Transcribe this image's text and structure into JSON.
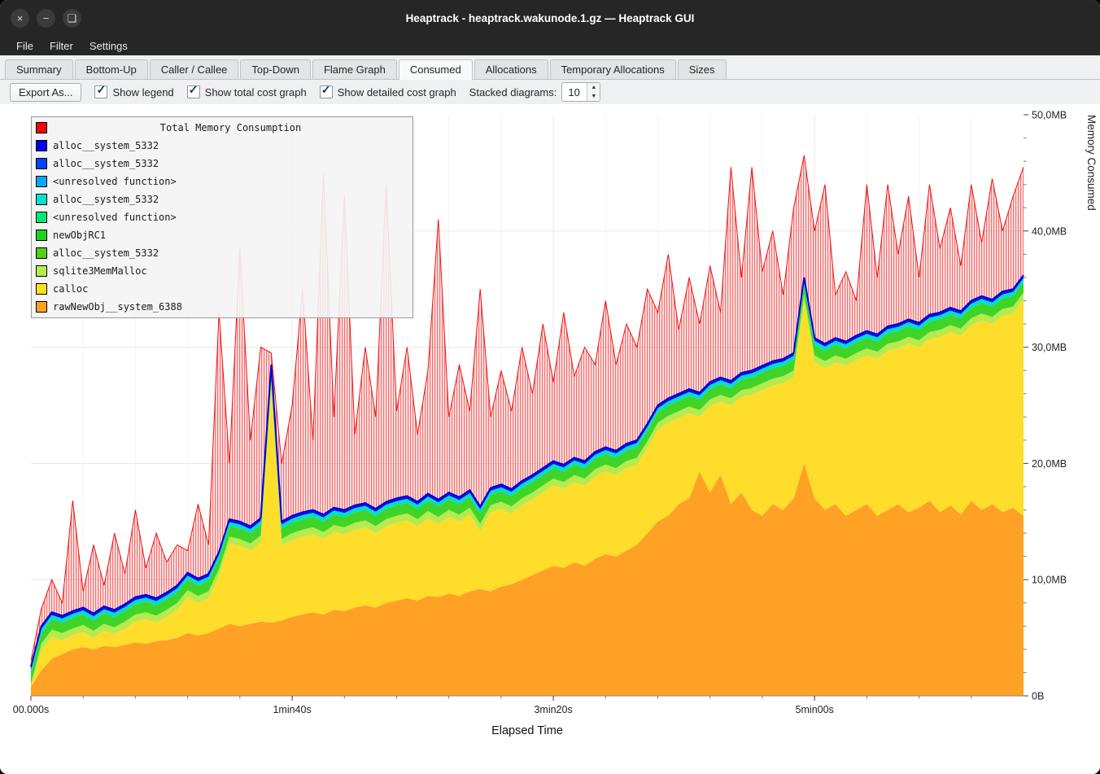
{
  "window": {
    "title": "Heaptrack - heaptrack.wakunode.1.gz — Heaptrack GUI"
  },
  "titlebar_icons": {
    "close": "×",
    "minimize": "−",
    "maximize": "❏"
  },
  "menu": {
    "items": [
      "File",
      "Filter",
      "Settings"
    ]
  },
  "tabs": {
    "active": "Consumed",
    "items": [
      {
        "label": "Summary"
      },
      {
        "label": "Bottom-Up"
      },
      {
        "label": "Caller / Callee"
      },
      {
        "label": "Top-Down"
      },
      {
        "label": "Flame Graph"
      },
      {
        "label": "Consumed"
      },
      {
        "label": "Allocations"
      },
      {
        "label": "Temporary Allocations"
      },
      {
        "label": "Sizes"
      }
    ]
  },
  "toolbar": {
    "export_label": "Export As...",
    "checkboxes": [
      {
        "label": "Show legend",
        "checked": true
      },
      {
        "label": "Show total cost graph",
        "checked": true
      },
      {
        "label": "Show detailed cost graph",
        "checked": true
      }
    ],
    "stacked_label": "Stacked diagrams:",
    "stacked_value": "10"
  },
  "legend": {
    "title": "Total Memory Consumption",
    "title_color": "#ff0000",
    "entries": [
      {
        "label": "alloc__system_5332",
        "color": "#0000ee"
      },
      {
        "label": "alloc__system_5332",
        "color": "#0044ff"
      },
      {
        "label": "<unresolved function>",
        "color": "#00aaff"
      },
      {
        "label": "alloc__system_5332",
        "color": "#00e5cf"
      },
      {
        "label": "<unresolved function>",
        "color": "#00e87a"
      },
      {
        "label": "newObjRC1",
        "color": "#1ed31e"
      },
      {
        "label": "alloc__system_5332",
        "color": "#52cf17"
      },
      {
        "label": "sqlite3MemMalloc",
        "color": "#b6ec52"
      },
      {
        "label": "calloc",
        "color": "#ffe01f"
      },
      {
        "label": "rawNewObj__system_6388",
        "color": "#ffa125"
      }
    ]
  },
  "chart_data": {
    "type": "area",
    "title": "Total Memory Consumption",
    "xlabel": "Elapsed Time",
    "ylabel": "Memory Consumed",
    "x_step_s": 4,
    "x_count": 96,
    "x_range_s": [
      0,
      380
    ],
    "y_range_mb": [
      0,
      50
    ],
    "x_ticks": [
      {
        "t": 0,
        "label": "00.000s"
      },
      {
        "t": 100,
        "label": "1min40s"
      },
      {
        "t": 200,
        "label": "3min20s"
      },
      {
        "t": 300,
        "label": "5min00s"
      }
    ],
    "y_ticks": [
      {
        "mb": 0,
        "label": "0B"
      },
      {
        "mb": 10,
        "label": "10,0MB"
      },
      {
        "mb": 20,
        "label": "20,0MB"
      },
      {
        "mb": 30,
        "label": "30,0MB"
      },
      {
        "mb": 40,
        "label": "40,0MB"
      },
      {
        "mb": 50,
        "label": "50,0MB"
      }
    ],
    "minor_x_tick_s": 20,
    "minor_y_tick_mb": 2,
    "total_color": "#ee1111",
    "stack_line_color": "#0000dd",
    "band_colors": {
      "rawNewObj__system_6388": "#ffa125",
      "calloc": "#ffdd2b"
    },
    "total_mb": [
      3.0,
      7.5,
      10.0,
      8.0,
      16.8,
      9.0,
      13.0,
      9.5,
      14.0,
      10.5,
      16.0,
      11.0,
      14.0,
      11.5,
      13.0,
      12.5,
      16.5,
      13.0,
      33.0,
      20.0,
      38.5,
      22.0,
      30.0,
      29.5,
      20.0,
      25.0,
      35.0,
      22.0,
      45.0,
      24.0,
      43.0,
      22.5,
      30.0,
      24.0,
      44.0,
      24.5,
      30.0,
      22.5,
      28.0,
      41.0,
      24.0,
      28.5,
      24.5,
      35.0,
      24.0,
      28.0,
      24.5,
      30.0,
      26.0,
      32.0,
      27.0,
      33.0,
      27.5,
      30.0,
      28.5,
      34.0,
      28.5,
      32.0,
      30.0,
      35.0,
      33.0,
      38.0,
      31.5,
      36.0,
      32.0,
      37.0,
      33.0,
      45.5,
      36.0,
      45.5,
      36.5,
      40.0,
      34.5,
      42.0,
      46.5,
      40.0,
      44.0,
      34.5,
      36.5,
      34.0,
      44.0,
      36.0,
      44.0,
      38.0,
      43.0,
      36.0,
      44.0,
      38.5,
      42.0,
      37.0,
      44.0,
      39.0,
      44.5,
      40.0,
      43.0,
      45.5
    ],
    "stack_top_mb": [
      2.5,
      6.0,
      7.2,
      6.9,
      7.3,
      7.6,
      7.1,
      7.7,
      7.4,
      7.9,
      8.5,
      8.7,
      8.4,
      8.9,
      9.5,
      10.6,
      10.1,
      10.5,
      12.4,
      15.2,
      15.0,
      14.6,
      15.3,
      28.5,
      15.0,
      15.5,
      15.8,
      16.0,
      15.6,
      16.2,
      16.0,
      16.4,
      16.6,
      16.1,
      16.7,
      17.0,
      17.2,
      16.7,
      17.4,
      16.9,
      17.5,
      17.1,
      17.7,
      16.3,
      17.9,
      18.2,
      17.8,
      18.5,
      19.0,
      19.6,
      20.2,
      19.9,
      20.5,
      20.2,
      21.0,
      21.4,
      21.1,
      21.7,
      22.0,
      23.4,
      25.0,
      25.6,
      26.0,
      26.4,
      26.1,
      27.0,
      27.4,
      27.1,
      27.8,
      28.0,
      28.4,
      28.8,
      29.0,
      29.5,
      36.0,
      30.8,
      30.3,
      30.8,
      30.5,
      31.0,
      31.4,
      31.1,
      31.8,
      32.0,
      32.4,
      32.1,
      32.8,
      33.0,
      33.4,
      33.1,
      34.0,
      34.4,
      34.1,
      34.8,
      35.0,
      36.2
    ],
    "raw_new_obj_top_mb": [
      0.8,
      2.2,
      3.2,
      3.6,
      4.0,
      4.2,
      4.0,
      4.3,
      4.2,
      4.4,
      4.6,
      4.5,
      4.7,
      4.8,
      5.0,
      5.4,
      5.2,
      5.4,
      5.8,
      6.2,
      6.0,
      6.2,
      6.4,
      6.3,
      6.5,
      6.8,
      7.0,
      7.2,
      7.0,
      7.4,
      7.3,
      7.6,
      7.8,
      7.6,
      8.0,
      8.2,
      8.4,
      8.2,
      8.6,
      8.5,
      8.8,
      8.6,
      9.0,
      9.2,
      9.0,
      9.4,
      9.6,
      10.0,
      10.4,
      10.8,
      11.2,
      11.0,
      11.5,
      11.2,
      11.8,
      12.2,
      12.0,
      12.5,
      13.0,
      14.0,
      15.0,
      15.5,
      16.5,
      17.0,
      19.3,
      17.5,
      19.0,
      16.5,
      17.5,
      16.0,
      15.5,
      16.5,
      16.0,
      17.0,
      20.0,
      17.0,
      16.0,
      16.5,
      15.5,
      16.0,
      16.5,
      15.5,
      16.0,
      16.5,
      15.8,
      16.2,
      16.8,
      15.8,
      16.4,
      15.6,
      16.8,
      16.0,
      16.5,
      15.8,
      16.2,
      15.5
    ],
    "thin_bands": [
      {
        "name": "sqlite3MemMalloc",
        "color": "#b6ea4e",
        "from_offset": 2.1,
        "to_offset": 1.5
      },
      {
        "name": "newObjRC1",
        "color": "#3fd427",
        "from_offset": 1.5,
        "to_offset": 0.6
      },
      {
        "name": "<unresolved function>",
        "color": "#00ddd2",
        "from_offset": 0.6,
        "to_offset": 0.25
      },
      {
        "name": "alloc__system_5332",
        "color": "#1111e0",
        "from_offset": 0.25,
        "to_offset": 0
      }
    ]
  }
}
